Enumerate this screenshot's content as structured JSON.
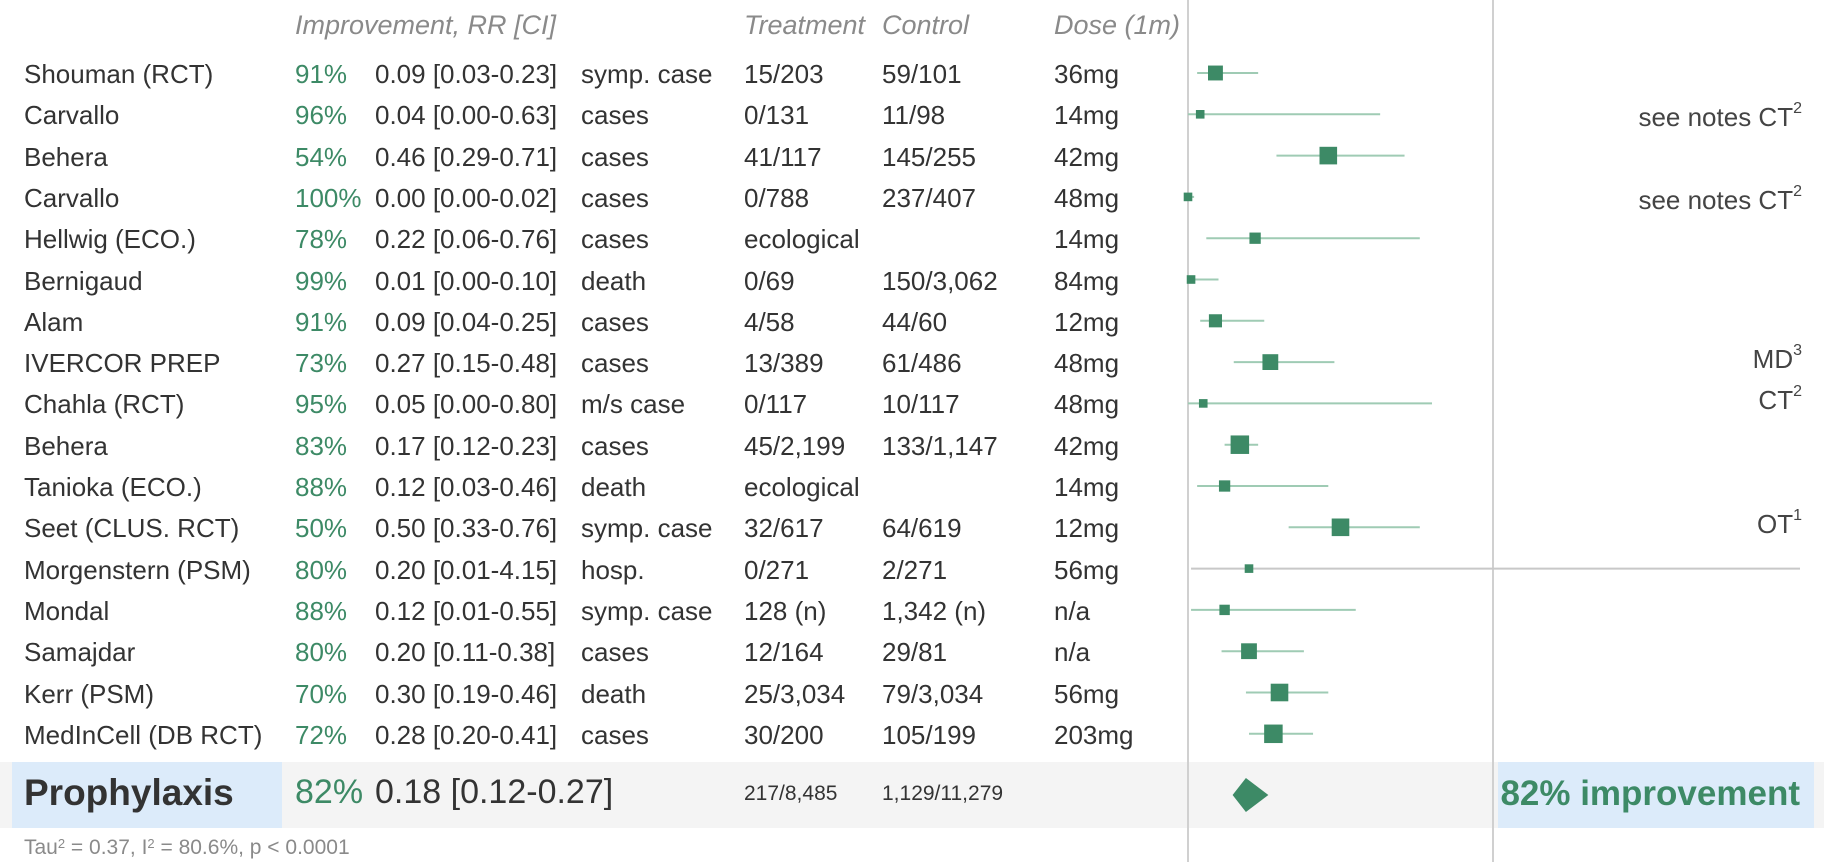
{
  "headers": {
    "improvement": "Improvement, RR [CI]",
    "treatment": "Treatment",
    "control": "Control",
    "dose": "Dose (1m)"
  },
  "rows": [
    {
      "study": "Shouman (RCT)",
      "pct": "91%",
      "rr_text": "0.09 [0.03-0.23]",
      "outcome": "symp. case",
      "treatment": "15/203",
      "control": "59/101",
      "dose": "36mg",
      "note": "",
      "note_sup": ""
    },
    {
      "study": "Carvallo",
      "pct": "96%",
      "rr_text": "0.04 [0.00-0.63]",
      "outcome": "cases",
      "treatment": "0/131",
      "control": "11/98",
      "dose": "14mg",
      "note": "see notes CT",
      "note_sup": "2"
    },
    {
      "study": "Behera",
      "pct": "54%",
      "rr_text": "0.46 [0.29-0.71]",
      "outcome": "cases",
      "treatment": "41/117",
      "control": "145/255",
      "dose": "42mg",
      "note": "",
      "note_sup": ""
    },
    {
      "study": "Carvallo",
      "pct": "100%",
      "rr_text": "0.00 [0.00-0.02]",
      "outcome": "cases",
      "treatment": "0/788",
      "control": "237/407",
      "dose": "48mg",
      "note": "see notes CT",
      "note_sup": "2"
    },
    {
      "study": "Hellwig (ECO.)",
      "pct": "78%",
      "rr_text": "0.22 [0.06-0.76]",
      "outcome": "cases",
      "treatment": "ecological",
      "control": "",
      "dose": "14mg",
      "note": "",
      "note_sup": ""
    },
    {
      "study": "Bernigaud",
      "pct": "99%",
      "rr_text": "0.01 [0.00-0.10]",
      "outcome": "death",
      "treatment": "0/69",
      "control": "150/3,062",
      "dose": "84mg",
      "note": "",
      "note_sup": ""
    },
    {
      "study": "Alam",
      "pct": "91%",
      "rr_text": "0.09 [0.04-0.25]",
      "outcome": "cases",
      "treatment": "4/58",
      "control": "44/60",
      "dose": "12mg",
      "note": "",
      "note_sup": ""
    },
    {
      "study": "IVERCOR PREP",
      "pct": "73%",
      "rr_text": "0.27 [0.15-0.48]",
      "outcome": "cases",
      "treatment": "13/389",
      "control": "61/486",
      "dose": "48mg",
      "note": "MD",
      "note_sup": "3"
    },
    {
      "study": "Chahla (RCT)",
      "pct": "95%",
      "rr_text": "0.05 [0.00-0.80]",
      "outcome": "m/s case",
      "treatment": "0/117",
      "control": "10/117",
      "dose": "48mg",
      "note": "CT",
      "note_sup": "2"
    },
    {
      "study": "Behera",
      "pct": "83%",
      "rr_text": "0.17 [0.12-0.23]",
      "outcome": "cases",
      "treatment": "45/2,199",
      "control": "133/1,147",
      "dose": "42mg",
      "note": "",
      "note_sup": ""
    },
    {
      "study": "Tanioka (ECO.)",
      "pct": "88%",
      "rr_text": "0.12 [0.03-0.46]",
      "outcome": "death",
      "treatment": "ecological",
      "control": "",
      "dose": "14mg",
      "note": "",
      "note_sup": ""
    },
    {
      "study": "Seet (CLUS. RCT)",
      "pct": "50%",
      "rr_text": "0.50 [0.33-0.76]",
      "outcome": "symp. case",
      "treatment": "32/617",
      "control": "64/619",
      "dose": "12mg",
      "note": "OT",
      "note_sup": "1"
    },
    {
      "study": "Morgenstern (PSM)",
      "pct": "80%",
      "rr_text": "0.20 [0.01-4.15]",
      "outcome": "hosp.",
      "treatment": "0/271",
      "control": "2/271",
      "dose": "56mg",
      "note": "",
      "note_sup": ""
    },
    {
      "study": "Mondal",
      "pct": "88%",
      "rr_text": "0.12 [0.01-0.55]",
      "outcome": "symp. case",
      "treatment": "128 (n)",
      "control": "1,342 (n)",
      "dose": "n/a",
      "note": "",
      "note_sup": ""
    },
    {
      "study": "Samajdar",
      "pct": "80%",
      "rr_text": "0.20 [0.11-0.38]",
      "outcome": "cases",
      "treatment": "12/164",
      "control": "29/81",
      "dose": "n/a",
      "note": "",
      "note_sup": ""
    },
    {
      "study": "Kerr (PSM)",
      "pct": "70%",
      "rr_text": "0.30 [0.19-0.46]",
      "outcome": "death",
      "treatment": "25/3,034",
      "control": "79/3,034",
      "dose": "56mg",
      "note": "",
      "note_sup": ""
    },
    {
      "study": "MedInCell (DB RCT)",
      "pct": "72%",
      "rr_text": "0.28 [0.20-0.41]",
      "outcome": "cases",
      "treatment": "30/200",
      "control": "105/199",
      "dose": "203mg",
      "note": "",
      "note_sup": ""
    }
  ],
  "summary": {
    "label": "Prophylaxis",
    "pct": "82%",
    "rr_text": "0.18 [0.12-0.27]",
    "treatment": "217/8,485",
    "control": "1,129/11,279",
    "improvement": "82% improvement"
  },
  "footer": {
    "tau": "Tau",
    "tau_sup": "2",
    "rest1": " = 0.37, I",
    "i_sup": "2",
    "rest2": " = 80.6%, p < 0.0001"
  },
  "colors": {
    "marker": "#3d8a66",
    "ci_line": "#9fcbb4",
    "ci_line_wide": "#c8c8c8",
    "text_green": "#3d8a66",
    "summary_box": "#dcebfa"
  },
  "chart_data": {
    "type": "forest",
    "measure": "RR",
    "scale": "linear",
    "null_line": 1.0,
    "studies": [
      {
        "study": "Shouman (RCT)",
        "rr": 0.09,
        "lo": 0.03,
        "hi": 0.23,
        "weight": 0.55
      },
      {
        "study": "Carvallo",
        "rr": 0.04,
        "lo": 0.0,
        "hi": 0.63,
        "weight": 0.2
      },
      {
        "study": "Behera",
        "rr": 0.46,
        "lo": 0.29,
        "hi": 0.71,
        "weight": 0.7
      },
      {
        "study": "Carvallo",
        "rr": 0.0,
        "lo": 0.0,
        "hi": 0.02,
        "weight": 0.2
      },
      {
        "study": "Hellwig (ECO.)",
        "rr": 0.22,
        "lo": 0.06,
        "hi": 0.76,
        "weight": 0.35
      },
      {
        "study": "Bernigaud",
        "rr": 0.01,
        "lo": 0.0,
        "hi": 0.1,
        "weight": 0.2
      },
      {
        "study": "Alam",
        "rr": 0.09,
        "lo": 0.04,
        "hi": 0.25,
        "weight": 0.45
      },
      {
        "study": "IVERCOR PREP",
        "rr": 0.27,
        "lo": 0.15,
        "hi": 0.48,
        "weight": 0.6
      },
      {
        "study": "Chahla (RCT)",
        "rr": 0.05,
        "lo": 0.0,
        "hi": 0.8,
        "weight": 0.2
      },
      {
        "study": "Behera",
        "rr": 0.17,
        "lo": 0.12,
        "hi": 0.23,
        "weight": 0.75
      },
      {
        "study": "Tanioka (ECO.)",
        "rr": 0.12,
        "lo": 0.03,
        "hi": 0.46,
        "weight": 0.35
      },
      {
        "study": "Seet (CLUS. RCT)",
        "rr": 0.5,
        "lo": 0.33,
        "hi": 0.76,
        "weight": 0.7
      },
      {
        "study": "Morgenstern (PSM)",
        "rr": 0.2,
        "lo": 0.01,
        "hi": 4.15,
        "weight": 0.2
      },
      {
        "study": "Mondal",
        "rr": 0.12,
        "lo": 0.01,
        "hi": 0.55,
        "weight": 0.3
      },
      {
        "study": "Samajdar",
        "rr": 0.2,
        "lo": 0.11,
        "hi": 0.38,
        "weight": 0.6
      },
      {
        "study": "Kerr (PSM)",
        "rr": 0.3,
        "lo": 0.19,
        "hi": 0.46,
        "weight": 0.7
      },
      {
        "study": "MedInCell (DB RCT)",
        "rr": 0.28,
        "lo": 0.2,
        "hi": 0.41,
        "weight": 0.75
      }
    ],
    "summary": {
      "rr": 0.18,
      "lo": 0.12,
      "hi": 0.27
    }
  }
}
